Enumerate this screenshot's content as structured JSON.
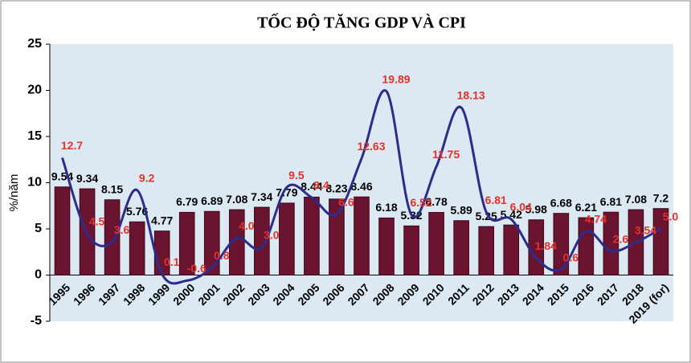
{
  "chart_data": {
    "type": "bar_line",
    "title": "TỐC ĐỘ TĂNG GDP VÀ CPI",
    "y_label": "%/năm",
    "categories": [
      "1995",
      "1996",
      "1997",
      "1998",
      "1999",
      "2000",
      "2001",
      "2002",
      "2003",
      "2004",
      "2005",
      "2006",
      "2007",
      "2008",
      "2009",
      "2010",
      "2011",
      "2012",
      "2013",
      "2014",
      "2015",
      "2016",
      "2017",
      "2018",
      "2019 (for)"
    ],
    "series": [
      {
        "type": "bar",
        "color": "#6a1430",
        "values": [
          9.54,
          9.34,
          8.15,
          5.76,
          4.77,
          6.79,
          6.89,
          7.08,
          7.34,
          7.79,
          8.44,
          8.23,
          8.46,
          6.18,
          5.32,
          6.78,
          5.89,
          5.25,
          5.42,
          5.98,
          6.68,
          6.21,
          6.81,
          7.08,
          7.2
        ]
      },
      {
        "type": "line",
        "color": "#2a2d8c",
        "values": [
          12.7,
          4.5,
          3.6,
          9.2,
          0.1,
          -0.6,
          0.8,
          4.0,
          3.0,
          9.5,
          8.4,
          6.6,
          12.63,
          19.89,
          6.52,
          11.75,
          18.13,
          6.81,
          6.04,
          1.84,
          0.6,
          4.74,
          2.6,
          3.54,
          5.0
        ],
        "value_labels": [
          "12.7",
          "4.5",
          "3.6",
          "9.2",
          "0.1",
          "-0.6",
          "0.8",
          "4.0",
          "3.0",
          "9.5",
          "8.4",
          "6.6",
          "12.63",
          "19.89",
          "6.52",
          "11.75",
          "18.13",
          "6.81",
          "6.04",
          "1.84",
          "0.6",
          "4.74",
          "2.6",
          "3.54",
          "5.0"
        ]
      }
    ],
    "ylim": [
      -5,
      25
    ],
    "yticks": [
      -5,
      0,
      5,
      10,
      15,
      20,
      25
    ]
  }
}
